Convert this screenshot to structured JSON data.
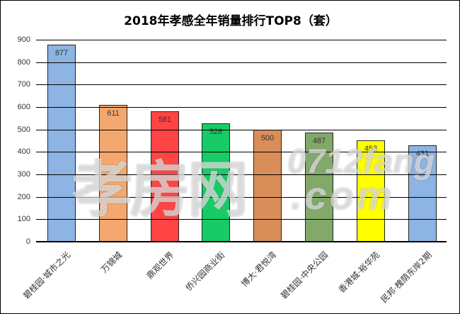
{
  "chart_data": {
    "type": "bar",
    "title": "2018年孝感全年销量排行TOP8（套）",
    "xlabel": "",
    "ylabel": "",
    "ylim": [
      0,
      900
    ],
    "yticks": [
      "0",
      "100",
      "200",
      "300",
      "400",
      "500",
      "600",
      "700",
      "800",
      "900"
    ],
    "grid": true,
    "legend": "none",
    "categories": [
      "碧桂园·城市之光",
      "万锦城",
      "鼎观世界",
      "侨兴园商业街",
      "博大·君悦湾",
      "碧桂园·中央公园",
      "香港城·裕华苑",
      "民邦·槐荫东岸2期"
    ],
    "values": [
      877,
      611,
      581,
      526,
      500,
      487,
      453,
      431
    ],
    "bar_colors": [
      "#8DB4E2",
      "#F4A86F",
      "#FF4444",
      "#17CC66",
      "#D98E5A",
      "#82A96A",
      "#FFFF00",
      "#8DB4E2"
    ],
    "data_labels": [
      "877",
      "611",
      "581",
      "526",
      "500",
      "487",
      "453",
      "431"
    ]
  },
  "watermark": {
    "cn": "孝房网",
    "domain_top": "0712fang",
    "domain_bottom": ".com"
  }
}
